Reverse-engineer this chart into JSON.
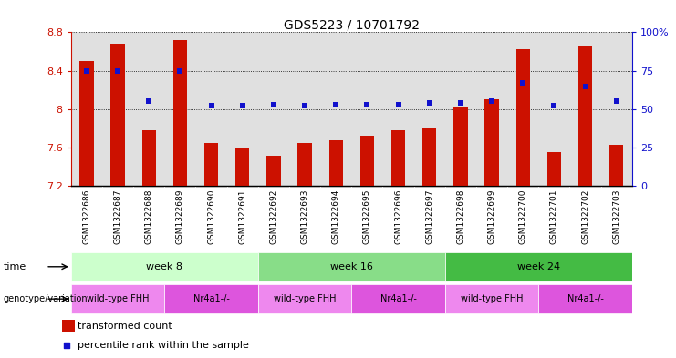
{
  "title": "GDS5223 / 10701792",
  "samples": [
    "GSM1322686",
    "GSM1322687",
    "GSM1322688",
    "GSM1322689",
    "GSM1322690",
    "GSM1322691",
    "GSM1322692",
    "GSM1322693",
    "GSM1322694",
    "GSM1322695",
    "GSM1322696",
    "GSM1322697",
    "GSM1322698",
    "GSM1322699",
    "GSM1322700",
    "GSM1322701",
    "GSM1322702",
    "GSM1322703"
  ],
  "transformed_counts": [
    8.5,
    8.68,
    7.78,
    8.72,
    7.65,
    7.6,
    7.52,
    7.65,
    7.68,
    7.72,
    7.78,
    7.8,
    8.02,
    8.1,
    8.62,
    7.55,
    8.65,
    7.63
  ],
  "percentile_ranks": [
    75,
    75,
    55,
    75,
    52,
    52,
    53,
    52,
    53,
    53,
    53,
    54,
    54,
    55,
    67,
    52,
    65,
    55
  ],
  "ymin": 7.2,
  "ymax": 8.8,
  "pmin": 0,
  "pmax": 100,
  "ytick_vals": [
    7.2,
    7.6,
    8.0,
    8.4,
    8.8
  ],
  "ytick_labels": [
    "7.2",
    "7.6",
    "8",
    "8.4",
    "8.8"
  ],
  "pticks": [
    0,
    25,
    50,
    75,
    100
  ],
  "ptick_labels": [
    "0",
    "25",
    "50",
    "75",
    "100%"
  ],
  "bar_color": "#cc1100",
  "dot_color": "#1111cc",
  "plot_bg": "#ffffff",
  "sample_col_bg": "#d8d8d8",
  "time_groups": [
    {
      "label": "week 8",
      "start": 0,
      "end": 6,
      "color": "#ccffcc"
    },
    {
      "label": "week 16",
      "start": 6,
      "end": 12,
      "color": "#88dd88"
    },
    {
      "label": "week 24",
      "start": 12,
      "end": 18,
      "color": "#44bb44"
    }
  ],
  "geno_groups": [
    {
      "label": "wild-type FHH",
      "start": 0,
      "end": 3,
      "color": "#ee88ee"
    },
    {
      "label": "Nr4a1-/-",
      "start": 3,
      "end": 6,
      "color": "#dd55dd"
    },
    {
      "label": "wild-type FHH",
      "start": 6,
      "end": 9,
      "color": "#ee88ee"
    },
    {
      "label": "Nr4a1-/-",
      "start": 9,
      "end": 12,
      "color": "#dd55dd"
    },
    {
      "label": "wild-type FHH",
      "start": 12,
      "end": 15,
      "color": "#ee88ee"
    },
    {
      "label": "Nr4a1-/-",
      "start": 15,
      "end": 18,
      "color": "#dd55dd"
    }
  ]
}
